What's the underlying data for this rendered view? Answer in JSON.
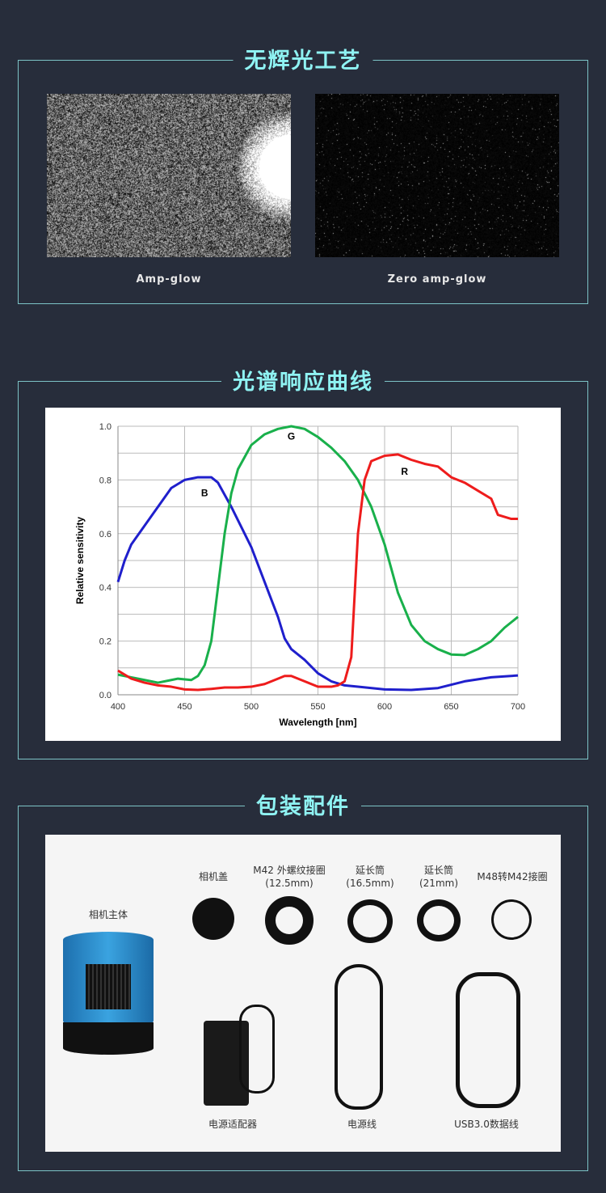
{
  "sections": [
    {
      "title": "无辉光工艺",
      "captions": [
        "Amp-glow",
        "Zero amp-glow"
      ]
    },
    {
      "title": "光谱响应曲线"
    },
    {
      "title": "包装配件",
      "items": [
        "相机主体",
        "相机盖",
        "M42 外螺纹接圈",
        "(12.5mm)",
        "延长筒",
        "(16.5mm)",
        "延长筒",
        "(21mm)",
        "M48转M42接圈",
        "电源适配器",
        "电源线",
        "USB3.0数据线"
      ]
    }
  ],
  "chart_data": {
    "type": "line",
    "xlabel": "Wavelength [nm]",
    "ylabel": "Relative sensitivity",
    "xlim": [
      400,
      700
    ],
    "ylim": [
      0,
      1.0
    ],
    "grid": true,
    "xticks": [
      "400",
      "450",
      "500",
      "550",
      "600",
      "650",
      "700"
    ],
    "yticks": [
      "0.0",
      "0.2",
      "0.4",
      "0.6",
      "0.8",
      "1.0"
    ],
    "series": [
      {
        "name": "B",
        "color": "#1f1fcc",
        "x": [
          400,
          405,
          410,
          420,
          430,
          440,
          450,
          460,
          470,
          475,
          485,
          500,
          510,
          520,
          525,
          530,
          540,
          550,
          560,
          570,
          580,
          600,
          620,
          640,
          660,
          680,
          700
        ],
        "y": [
          0.42,
          0.5,
          0.56,
          0.63,
          0.7,
          0.77,
          0.8,
          0.81,
          0.81,
          0.79,
          0.7,
          0.55,
          0.42,
          0.29,
          0.21,
          0.17,
          0.13,
          0.08,
          0.05,
          0.035,
          0.03,
          0.02,
          0.018,
          0.025,
          0.05,
          0.065,
          0.072
        ]
      },
      {
        "name": "G",
        "color": "#19b04b",
        "x": [
          400,
          410,
          420,
          430,
          440,
          445,
          455,
          460,
          465,
          470,
          475,
          480,
          485,
          490,
          500,
          510,
          520,
          530,
          540,
          550,
          560,
          570,
          580,
          590,
          600,
          610,
          620,
          630,
          640,
          650,
          660,
          670,
          680,
          690,
          700
        ],
        "y": [
          0.075,
          0.065,
          0.055,
          0.045,
          0.055,
          0.06,
          0.055,
          0.07,
          0.11,
          0.2,
          0.4,
          0.6,
          0.75,
          0.84,
          0.93,
          0.97,
          0.99,
          1.0,
          0.99,
          0.96,
          0.92,
          0.87,
          0.8,
          0.7,
          0.56,
          0.38,
          0.26,
          0.2,
          0.17,
          0.15,
          0.148,
          0.17,
          0.2,
          0.25,
          0.29
        ]
      },
      {
        "name": "R",
        "color": "#ee1c1c",
        "x": [
          400,
          410,
          420,
          430,
          440,
          450,
          460,
          470,
          480,
          490,
          500,
          510,
          520,
          525,
          530,
          540,
          550,
          560,
          565,
          570,
          575,
          580,
          585,
          590,
          600,
          610,
          620,
          630,
          640,
          650,
          660,
          670,
          680,
          685,
          695,
          700
        ],
        "y": [
          0.09,
          0.06,
          0.045,
          0.035,
          0.03,
          0.02,
          0.018,
          0.022,
          0.027,
          0.027,
          0.03,
          0.04,
          0.06,
          0.07,
          0.07,
          0.05,
          0.03,
          0.03,
          0.035,
          0.05,
          0.14,
          0.6,
          0.8,
          0.87,
          0.89,
          0.895,
          0.875,
          0.86,
          0.85,
          0.81,
          0.79,
          0.76,
          0.73,
          0.67,
          0.655,
          0.655
        ]
      }
    ],
    "annotations": [
      {
        "text": "B",
        "x": 465,
        "y": 0.74
      },
      {
        "text": "G",
        "x": 530,
        "y": 0.95
      },
      {
        "text": "R",
        "x": 615,
        "y": 0.82
      }
    ]
  }
}
